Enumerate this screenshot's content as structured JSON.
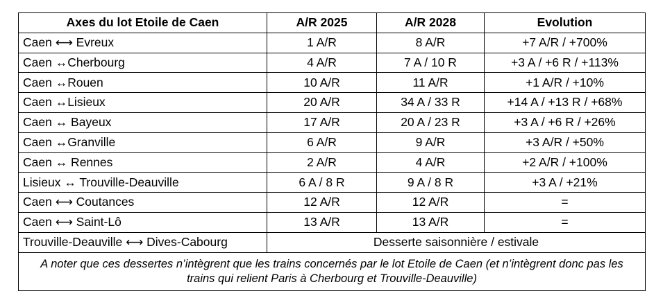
{
  "table": {
    "headers": [
      "Axes du lot Etoile de Caen",
      "A/R 2025",
      "A/R 2028",
      "Evolution"
    ],
    "rows": [
      {
        "axis": "Caen ⟷ Evreux",
        "ar2025": "1 A/R",
        "ar2028": "8 A/R",
        "evolution": "+7 A/R / +700%"
      },
      {
        "axis": "Caen ↔Cherbourg",
        "ar2025": "4 A/R",
        "ar2028": "7 A / 10 R",
        "evolution": "+3 A / +6 R / +113%"
      },
      {
        "axis": "Caen ↔Rouen",
        "ar2025": "10 A/R",
        "ar2028": "11 A/R",
        "evolution": "+1 A/R / +10%"
      },
      {
        "axis": "Caen ↔Lisieux",
        "ar2025": "20 A/R",
        "ar2028": "34 A / 33 R",
        "evolution": "+14 A / +13 R / +68%"
      },
      {
        "axis": "Caen ↔ Bayeux",
        "ar2025": "17 A/R",
        "ar2028": "20 A / 23 R",
        "evolution": "+3 A / +6 R / +26%"
      },
      {
        "axis": "Caen ↔Granville",
        "ar2025": "6 A/R",
        "ar2028": "9 A/R",
        "evolution": "+3 A/R / +50%"
      },
      {
        "axis": "Caen ↔ Rennes",
        "ar2025": "2 A/R",
        "ar2028": "4 A/R",
        "evolution": "+2 A/R / +100%"
      },
      {
        "axis": "Lisieux ↔ Trouville-Deauville",
        "ar2025": "6 A / 8 R",
        "ar2028": "9 A / 8 R",
        "evolution": "+3 A / +21%"
      },
      {
        "axis": "Caen ⟷ Coutances",
        "ar2025": "12 A/R",
        "ar2028": "12 A/R",
        "evolution": "="
      },
      {
        "axis": "Caen ⟷ Saint-Lô",
        "ar2025": "13 A/R",
        "ar2028": "13 A/R",
        "evolution": "="
      }
    ],
    "seasonal_row": {
      "axis": "Trouville-Deauville ⟷ Dives-Cabourg",
      "text": "Desserte saisonnière / estivale"
    },
    "note": "A noter que ces dessertes n’intègrent que les trains concernés par le lot Etoile de Caen (et n’intègrent donc pas les trains qui relient Paris à Cherbourg et Trouville-Deauville)"
  }
}
